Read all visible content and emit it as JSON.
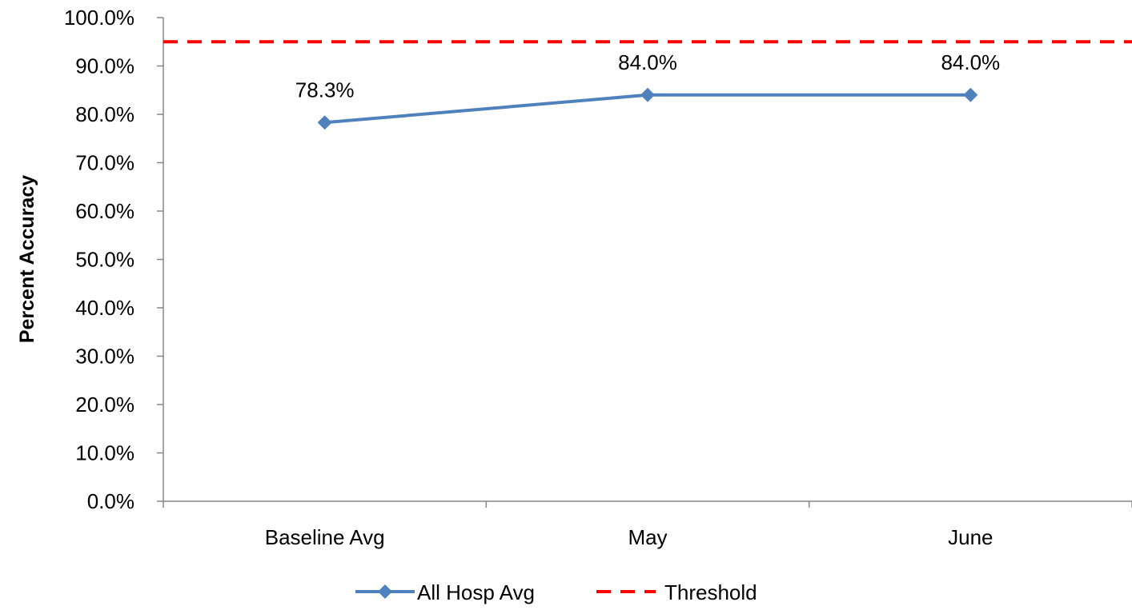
{
  "chart_data": {
    "type": "line",
    "title": "",
    "xlabel": "",
    "ylabel": "Percent Accuracy",
    "ylim": [
      0,
      100
    ],
    "ytick_step": 10,
    "ytick_format": "percent_1dp",
    "grid": false,
    "legend_position": "bottom",
    "categories": [
      "Baseline Avg",
      "May",
      "June"
    ],
    "series": [
      {
        "name": "All Hosp Avg",
        "values": [
          78.3,
          84.0,
          84.0
        ],
        "data_labels": [
          "78.3%",
          "84.0%",
          "84.0%"
        ],
        "color": "#4F81BD",
        "marker": "diamond",
        "line_style": "solid"
      },
      {
        "name": "Threshold",
        "constant": 95,
        "color": "#FF0000",
        "line_style": "dashed"
      }
    ]
  }
}
